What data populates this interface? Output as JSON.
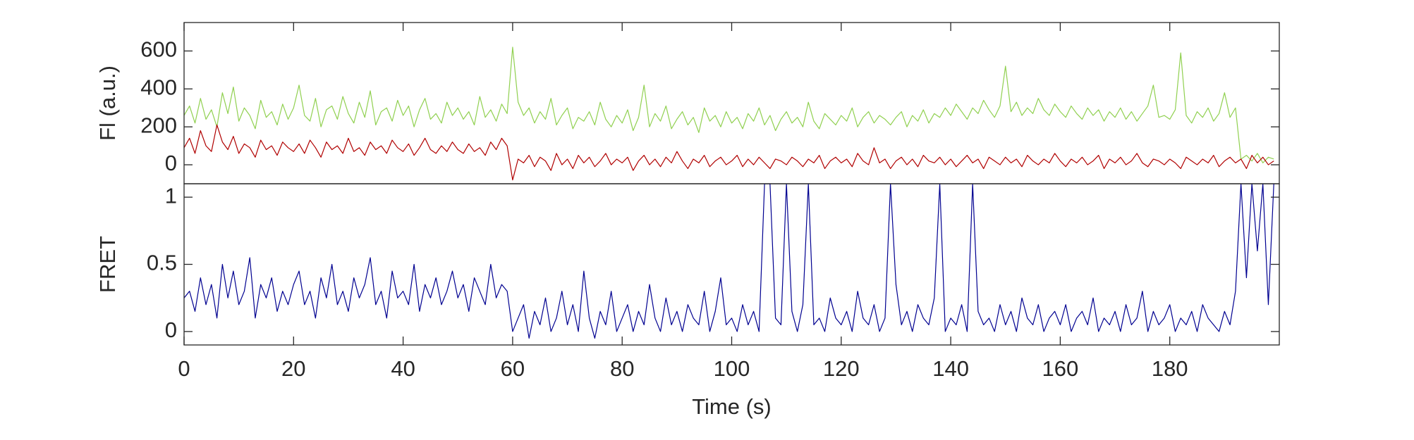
{
  "chart_data": [
    {
      "type": "line",
      "ylabel": "Fl (a.u.)",
      "x": [
        0,
        1,
        2,
        3,
        4,
        5,
        6,
        7,
        8,
        9,
        10,
        11,
        12,
        13,
        14,
        15,
        16,
        17,
        18,
        19,
        20,
        21,
        22,
        23,
        24,
        25,
        26,
        27,
        28,
        29,
        30,
        31,
        32,
        33,
        34,
        35,
        36,
        37,
        38,
        39,
        40,
        41,
        42,
        43,
        44,
        45,
        46,
        47,
        48,
        49,
        50,
        51,
        52,
        53,
        54,
        55,
        56,
        57,
        58,
        59,
        60,
        61,
        62,
        63,
        64,
        65,
        66,
        67,
        68,
        69,
        70,
        71,
        72,
        73,
        74,
        75,
        76,
        77,
        78,
        79,
        80,
        81,
        82,
        83,
        84,
        85,
        86,
        87,
        88,
        89,
        90,
        91,
        92,
        93,
        94,
        95,
        96,
        97,
        98,
        99,
        100,
        101,
        102,
        103,
        104,
        105,
        106,
        107,
        108,
        109,
        110,
        111,
        112,
        113,
        114,
        115,
        116,
        117,
        118,
        119,
        120,
        121,
        122,
        123,
        124,
        125,
        126,
        127,
        128,
        129,
        130,
        131,
        132,
        133,
        134,
        135,
        136,
        137,
        138,
        139,
        140,
        141,
        142,
        143,
        144,
        145,
        146,
        147,
        148,
        149,
        150,
        151,
        152,
        153,
        154,
        155,
        156,
        157,
        158,
        159,
        160,
        161,
        162,
        163,
        164,
        165,
        166,
        167,
        168,
        169,
        170,
        171,
        172,
        173,
        174,
        175,
        176,
        177,
        178,
        179,
        180,
        181,
        182,
        183,
        184,
        185,
        186,
        187,
        188,
        189,
        190,
        191,
        192,
        193,
        194,
        195,
        196,
        197,
        198,
        199
      ],
      "series": [
        {
          "color": "#90d050",
          "values": [
            260,
            310,
            220,
            350,
            240,
            290,
            200,
            380,
            270,
            410,
            230,
            300,
            260,
            190,
            340,
            250,
            280,
            210,
            320,
            240,
            300,
            420,
            260,
            230,
            350,
            200,
            290,
            310,
            240,
            360,
            270,
            220,
            330,
            250,
            390,
            210,
            280,
            300,
            230,
            340,
            260,
            310,
            200,
            290,
            350,
            240,
            270,
            220,
            330,
            260,
            300,
            240,
            280,
            210,
            360,
            250,
            290,
            230,
            320,
            270,
            620,
            330,
            260,
            300,
            220,
            280,
            240,
            350,
            210,
            260,
            300,
            190,
            250,
            230,
            280,
            210,
            330,
            240,
            200,
            260,
            220,
            290,
            180,
            250,
            420,
            200,
            270,
            230,
            310,
            190,
            240,
            280,
            210,
            250,
            170,
            300,
            230,
            260,
            200,
            280,
            220,
            250,
            190,
            270,
            230,
            300,
            210,
            260,
            180,
            240,
            280,
            220,
            250,
            200,
            330,
            230,
            190,
            270,
            240,
            210,
            260,
            230,
            300,
            200,
            250,
            280,
            220,
            260,
            240,
            210,
            250,
            280,
            200,
            260,
            230,
            290,
            220,
            270,
            250,
            300,
            260,
            320,
            280,
            240,
            300,
            270,
            340,
            290,
            250,
            310,
            520,
            280,
            330,
            260,
            300,
            270,
            350,
            290,
            260,
            320,
            280,
            250,
            310,
            270,
            240,
            300,
            260,
            290,
            230,
            280,
            250,
            300,
            240,
            280,
            230,
            270,
            310,
            420,
            250,
            260,
            240,
            290,
            590,
            260,
            220,
            280,
            250,
            300,
            230,
            270,
            380,
            250,
            300,
            30,
            50,
            20,
            60,
            10,
            40,
            30
          ]
        },
        {
          "color": "#b00000",
          "values": [
            90,
            140,
            60,
            180,
            100,
            70,
            210,
            120,
            80,
            150,
            60,
            110,
            90,
            40,
            130,
            80,
            100,
            50,
            120,
            90,
            70,
            110,
            60,
            130,
            90,
            40,
            120,
            80,
            100,
            60,
            140,
            70,
            90,
            50,
            120,
            80,
            100,
            60,
            130,
            90,
            70,
            110,
            50,
            90,
            140,
            80,
            60,
            100,
            70,
            120,
            80,
            60,
            110,
            70,
            90,
            50,
            120,
            80,
            140,
            100,
            -80,
            30,
            10,
            50,
            -10,
            40,
            20,
            -30,
            60,
            0,
            30,
            -20,
            50,
            10,
            40,
            -10,
            20,
            60,
            0,
            30,
            10,
            40,
            -30,
            20,
            50,
            0,
            30,
            -10,
            40,
            10,
            70,
            20,
            -20,
            30,
            10,
            50,
            -10,
            20,
            40,
            0,
            20,
            50,
            -10,
            30,
            0,
            40,
            10,
            -20,
            30,
            20,
            0,
            40,
            20,
            -10,
            30,
            10,
            50,
            -20,
            20,
            40,
            10,
            30,
            -10,
            60,
            20,
            0,
            90,
            10,
            30,
            -20,
            20,
            40,
            0,
            30,
            -10,
            50,
            20,
            10,
            40,
            0,
            30,
            -10,
            20,
            50,
            10,
            30,
            -20,
            40,
            20,
            0,
            40,
            10,
            30,
            -10,
            50,
            20,
            0,
            30,
            10,
            60,
            20,
            -10,
            30,
            10,
            40,
            0,
            20,
            50,
            -20,
            30,
            10,
            40,
            0,
            20,
            60,
            10,
            -10,
            30,
            20,
            0,
            30,
            10,
            -20,
            40,
            20,
            0,
            30,
            10,
            50,
            -10,
            20,
            40,
            10,
            30,
            -20,
            50,
            10,
            40,
            0,
            20
          ]
        }
      ],
      "xlim": [
        0,
        200
      ],
      "ylim": [
        -100,
        750
      ],
      "yticks": [
        0,
        200,
        400,
        600
      ]
    },
    {
      "type": "line",
      "ylabel": "FRET",
      "xlabel": "Time (s)",
      "x": [
        0,
        1,
        2,
        3,
        4,
        5,
        6,
        7,
        8,
        9,
        10,
        11,
        12,
        13,
        14,
        15,
        16,
        17,
        18,
        19,
        20,
        21,
        22,
        23,
        24,
        25,
        26,
        27,
        28,
        29,
        30,
        31,
        32,
        33,
        34,
        35,
        36,
        37,
        38,
        39,
        40,
        41,
        42,
        43,
        44,
        45,
        46,
        47,
        48,
        49,
        50,
        51,
        52,
        53,
        54,
        55,
        56,
        57,
        58,
        59,
        60,
        61,
        62,
        63,
        64,
        65,
        66,
        67,
        68,
        69,
        70,
        71,
        72,
        73,
        74,
        75,
        76,
        77,
        78,
        79,
        80,
        81,
        82,
        83,
        84,
        85,
        86,
        87,
        88,
        89,
        90,
        91,
        92,
        93,
        94,
        95,
        96,
        97,
        98,
        99,
        100,
        101,
        102,
        103,
        104,
        105,
        106,
        107,
        108,
        109,
        110,
        111,
        112,
        113,
        114,
        115,
        116,
        117,
        118,
        119,
        120,
        121,
        122,
        123,
        124,
        125,
        126,
        127,
        128,
        129,
        130,
        131,
        132,
        133,
        134,
        135,
        136,
        137,
        138,
        139,
        140,
        141,
        142,
        143,
        144,
        145,
        146,
        147,
        148,
        149,
        150,
        151,
        152,
        153,
        154,
        155,
        156,
        157,
        158,
        159,
        160,
        161,
        162,
        163,
        164,
        165,
        166,
        167,
        168,
        169,
        170,
        171,
        172,
        173,
        174,
        175,
        176,
        177,
        178,
        179,
        180,
        181,
        182,
        183,
        184,
        185,
        186,
        187,
        188,
        189,
        190,
        191,
        192,
        193,
        194,
        195,
        196,
        197,
        198,
        199
      ],
      "series": [
        {
          "color": "#000090",
          "values": [
            0.25,
            0.3,
            0.15,
            0.4,
            0.2,
            0.35,
            0.1,
            0.5,
            0.25,
            0.45,
            0.2,
            0.3,
            0.55,
            0.1,
            0.35,
            0.25,
            0.4,
            0.15,
            0.3,
            0.2,
            0.35,
            0.45,
            0.2,
            0.3,
            0.1,
            0.4,
            0.25,
            0.5,
            0.2,
            0.3,
            0.15,
            0.4,
            0.25,
            0.35,
            0.55,
            0.2,
            0.3,
            0.1,
            0.45,
            0.25,
            0.3,
            0.2,
            0.5,
            0.15,
            0.35,
            0.25,
            0.4,
            0.2,
            0.3,
            0.45,
            0.25,
            0.35,
            0.15,
            0.4,
            0.3,
            0.2,
            0.5,
            0.25,
            0.35,
            0.3,
            0,
            0.1,
            0.2,
            -0.05,
            0.15,
            0.05,
            0.25,
            0,
            0.1,
            0.3,
            0.05,
            0.2,
            0,
            0.45,
            0.1,
            -0.05,
            0.15,
            0.05,
            0.3,
            0,
            0.1,
            0.2,
            0,
            0.15,
            0.05,
            0.35,
            0.1,
            0,
            0.25,
            0.05,
            0.15,
            0,
            0.2,
            0.1,
            0.05,
            0.3,
            0,
            0.15,
            0.4,
            0.05,
            0.1,
            0,
            0.2,
            0.05,
            0.15,
            0,
            1.1,
            1.1,
            0.1,
            0.05,
            1.1,
            0.15,
            0,
            0.2,
            1.1,
            0.05,
            0.1,
            0,
            0.25,
            0.1,
            0.05,
            0.15,
            0,
            0.3,
            0.1,
            0.05,
            0.2,
            0,
            0.1,
            1.1,
            0.35,
            0.05,
            0.15,
            0,
            0.2,
            0.1,
            0.05,
            0.25,
            1.1,
            0,
            0.1,
            0.05,
            0.2,
            0,
            1.1,
            0.15,
            0.05,
            0.1,
            0,
            0.2,
            0.05,
            0.15,
            0,
            0.25,
            0.1,
            0.05,
            0.2,
            0,
            0.1,
            0.15,
            0.05,
            0.2,
            0,
            0.1,
            0.15,
            0.05,
            0.25,
            0,
            0.1,
            0.05,
            0.15,
            0,
            0.2,
            0.05,
            0.1,
            0.3,
            0,
            0.15,
            0.05,
            0.1,
            0.2,
            0,
            0.1,
            0.05,
            0.15,
            0,
            0.2,
            0.1,
            0.05,
            0,
            0.15,
            0.05,
            0.3,
            1.1,
            0.4,
            1.1,
            0.6,
            1.1,
            0.2,
            1.1
          ]
        }
      ],
      "xlim": [
        0,
        200
      ],
      "xticks": [
        0,
        20,
        40,
        60,
        80,
        100,
        120,
        140,
        160,
        180
      ],
      "ylim": [
        -0.1,
        1.1
      ],
      "yticks": [
        0,
        0.5,
        1
      ]
    }
  ]
}
